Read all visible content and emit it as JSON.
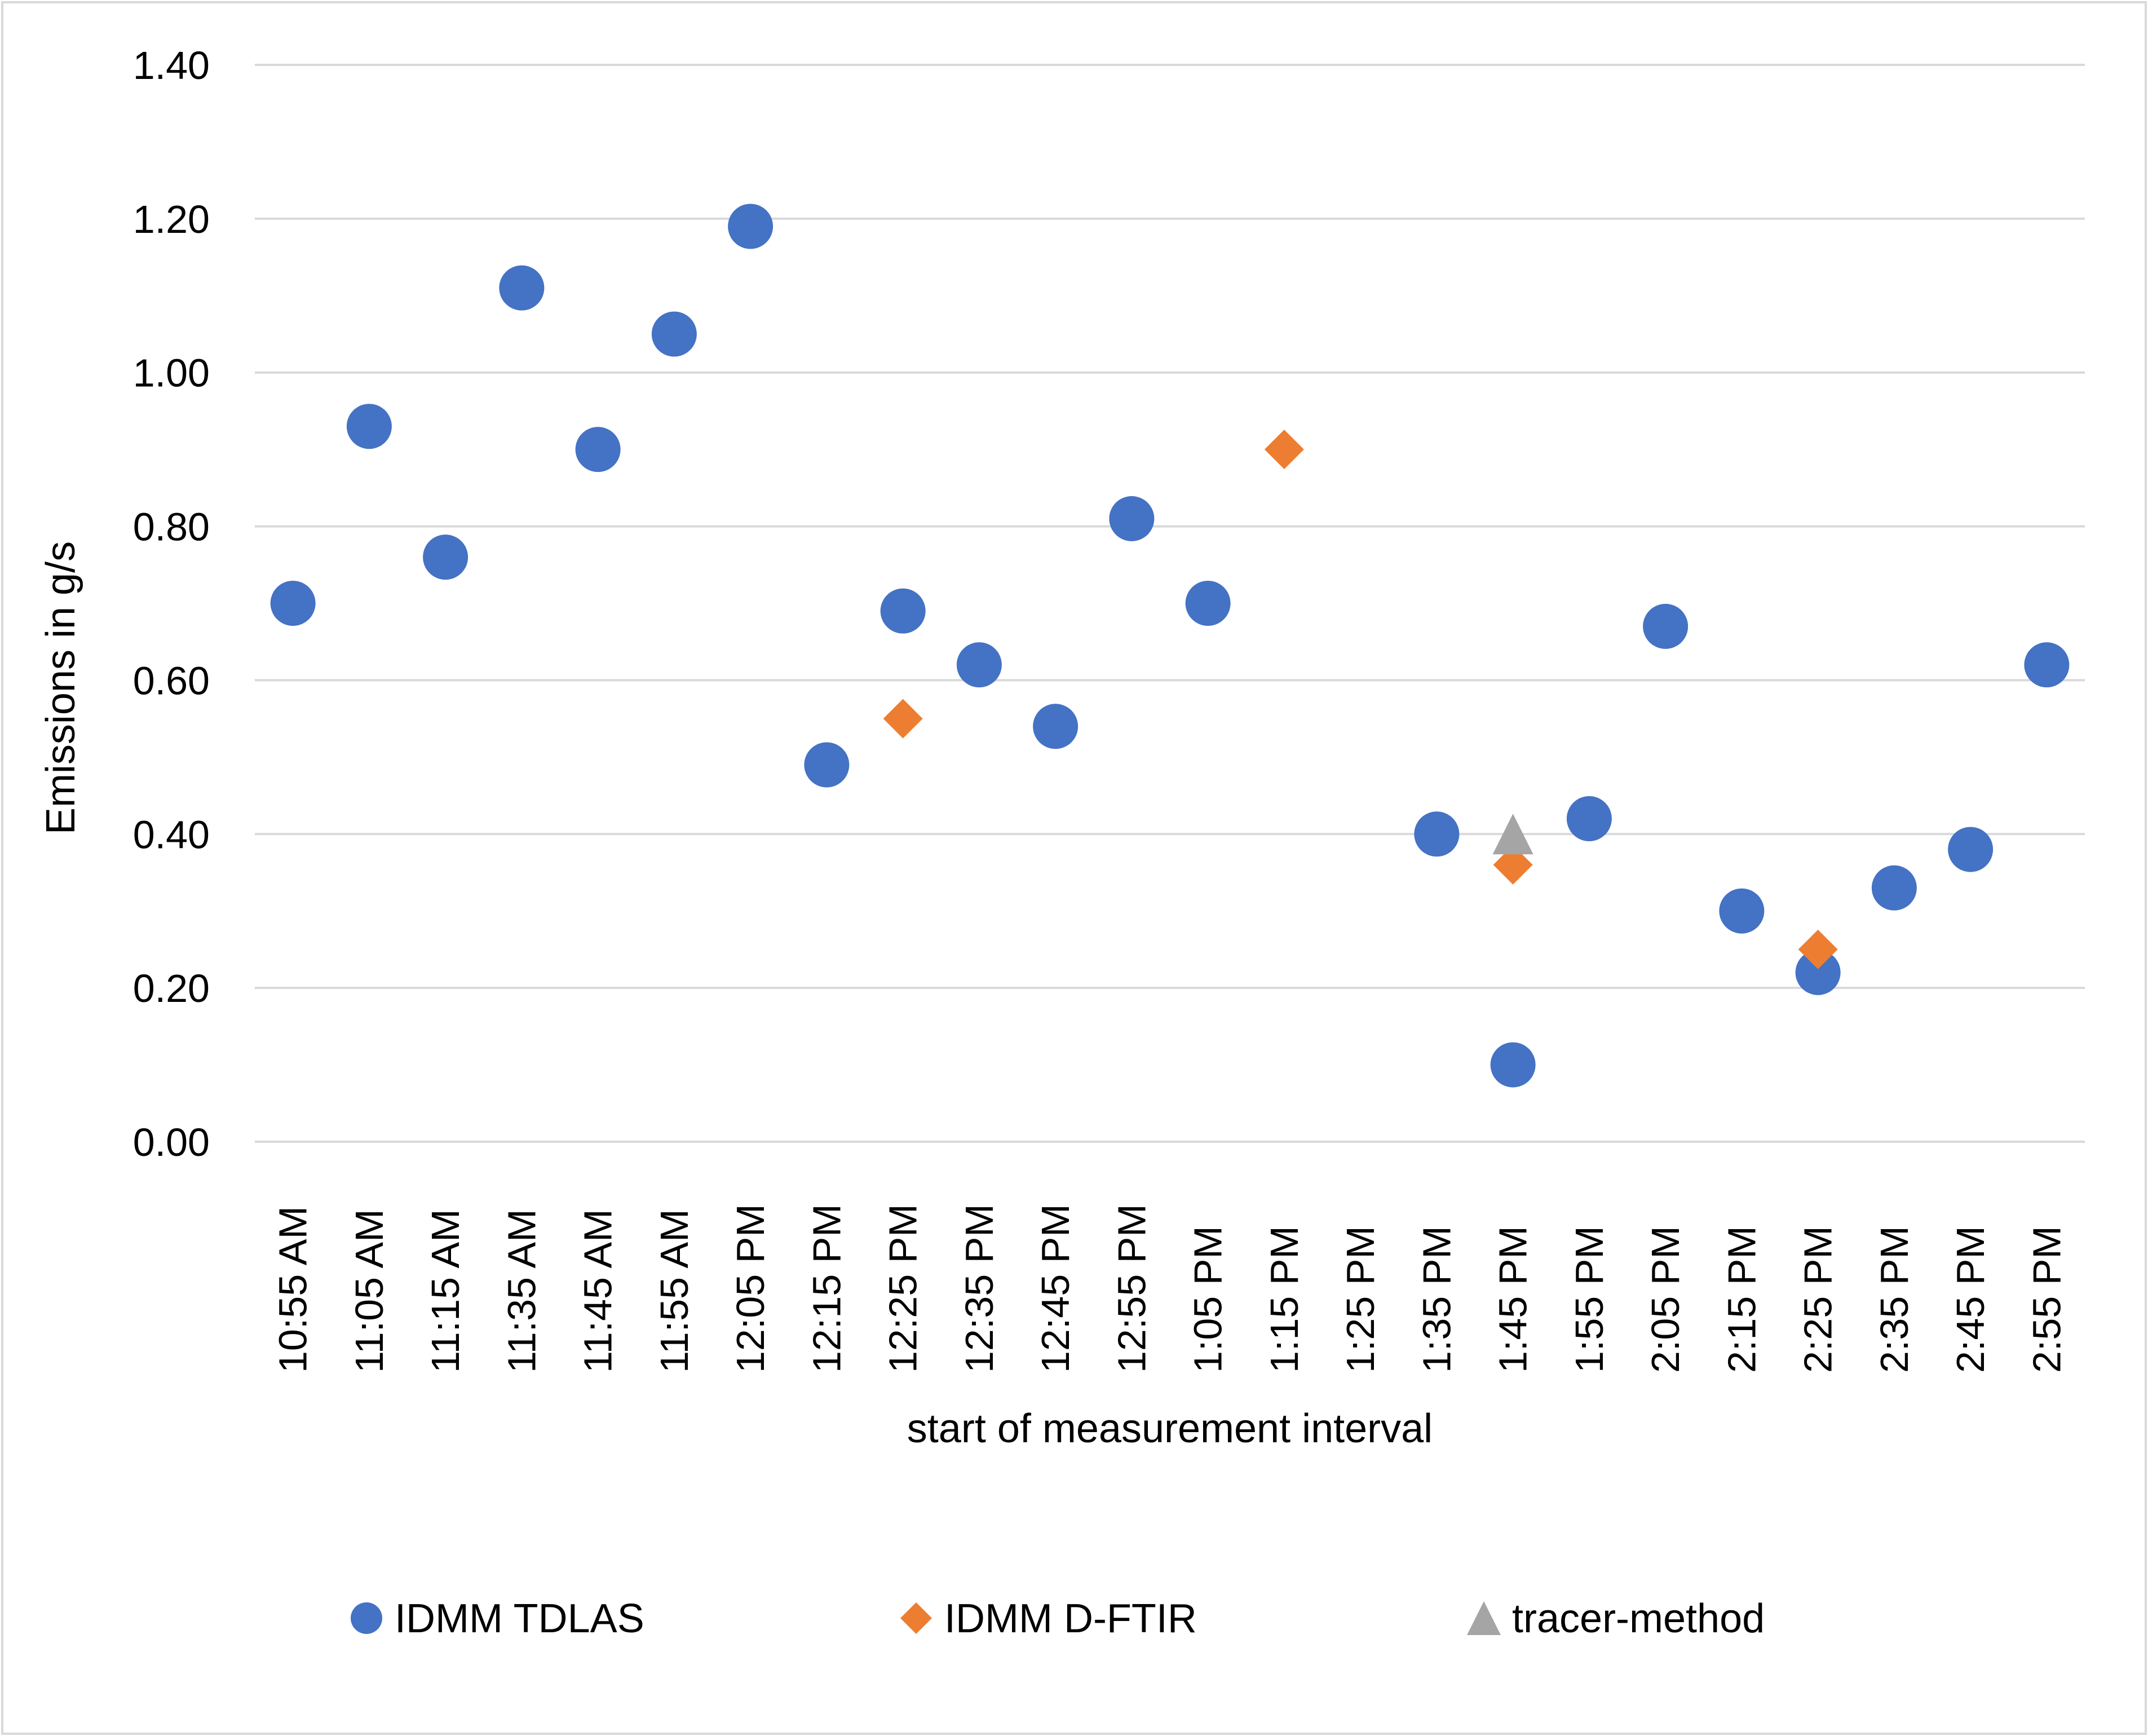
{
  "chart_data": {
    "type": "scatter",
    "title": "",
    "xlabel": "start of measurement interval",
    "ylabel": "Emissions in g/s",
    "ylim": [
      0,
      1.4
    ],
    "ytick_step": 0.2,
    "ytick_labels": [
      "0.00",
      "0.20",
      "0.40",
      "0.60",
      "0.80",
      "1.00",
      "1.20",
      "1.40"
    ],
    "grid": true,
    "legend_position": "bottom",
    "categories": [
      "10:55 AM",
      "11:05 AM",
      "11:15 AM",
      "11:35 AM",
      "11:45 AM",
      "11:55 AM",
      "12:05 PM",
      "12:15 PM",
      "12:25 PM",
      "12:35 PM",
      "12:45 PM",
      "12:55 PM",
      "1:05 PM",
      "1:15 PM",
      "1:25 PM",
      "1:35 PM",
      "1:45 PM",
      "1:55 PM",
      "2:05 PM",
      "2:15 PM",
      "2:25 PM",
      "2:35 PM",
      "2:45 PM",
      "2:55 PM"
    ],
    "series": [
      {
        "name": "IDMM TDLAS",
        "marker": "circle",
        "color": "#4472C4",
        "values": [
          0.7,
          0.93,
          0.76,
          1.11,
          0.9,
          1.05,
          1.19,
          0.49,
          0.69,
          0.62,
          0.54,
          0.81,
          0.7,
          null,
          null,
          0.4,
          0.1,
          0.42,
          0.67,
          0.3,
          0.22,
          0.33,
          0.38,
          0.62
        ]
      },
      {
        "name": "IDMM D-FTIR",
        "marker": "diamond",
        "color": "#ED7D31",
        "values": [
          null,
          null,
          null,
          null,
          null,
          null,
          null,
          null,
          0.55,
          null,
          null,
          null,
          null,
          0.9,
          null,
          null,
          0.36,
          null,
          null,
          null,
          0.25,
          null,
          null,
          null
        ]
      },
      {
        "name": "tracer-method",
        "marker": "triangle",
        "color": "#A5A5A5",
        "values": [
          null,
          null,
          null,
          null,
          null,
          null,
          null,
          null,
          null,
          null,
          null,
          null,
          null,
          null,
          null,
          null,
          0.4,
          null,
          null,
          null,
          null,
          null,
          null,
          null
        ]
      }
    ]
  }
}
